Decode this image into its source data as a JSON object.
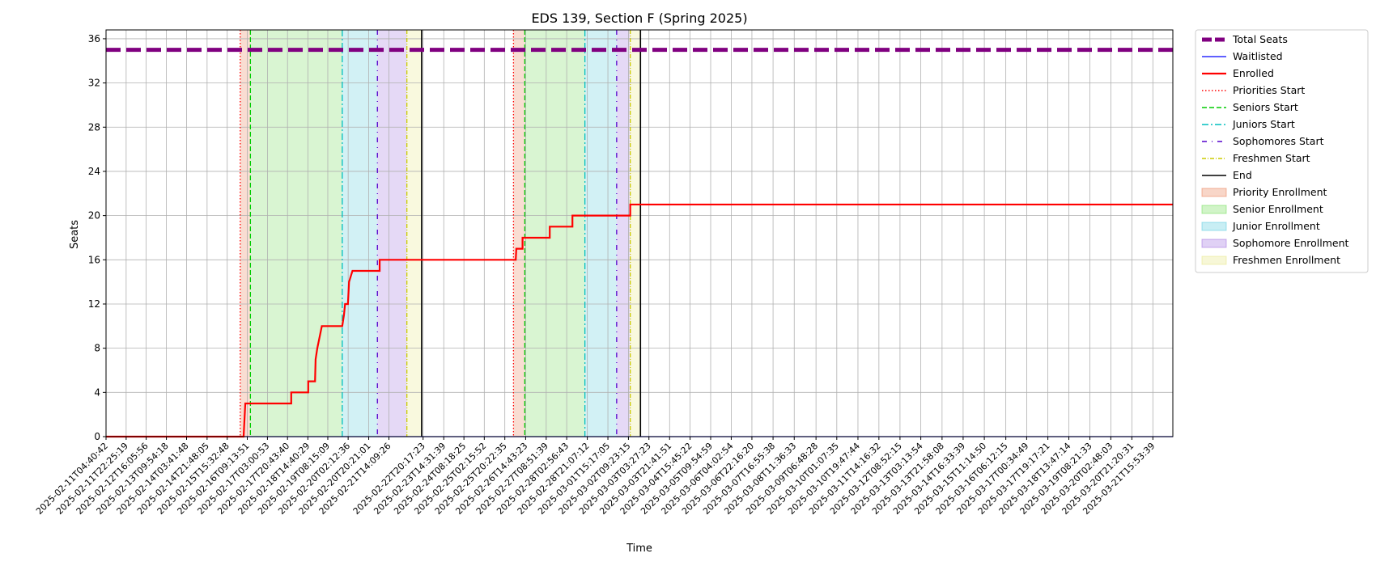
{
  "chart_data": {
    "type": "line",
    "title": "EDS 139, Section F (Spring 2025)",
    "xlabel": "Time",
    "ylabel": "Seats",
    "x_start": "2025-02-11T04:40:42",
    "x_end": "2025-03-22T09:30:00",
    "ylim": [
      0,
      36.8
    ],
    "yticks": [
      0,
      4,
      8,
      12,
      16,
      20,
      24,
      28,
      32,
      36
    ],
    "grid": true,
    "legend_position": "outside-top-right",
    "xtick_labels": [
      "2025-02-11T04:40:42",
      "2025-02-11T22:25:19",
      "2025-02-12T16:05:56",
      "2025-02-13T09:54:18",
      "2025-02-14T03:41:48",
      "2025-02-14T21:48:05",
      "2025-02-15T15:32:48",
      "2025-02-16T09:13:51",
      "2025-02-17T03:00:53",
      "2025-02-17T20:43:40",
      "2025-02-18T14:40:29",
      "2025-02-19T08:15:09",
      "2025-02-20T02:12:36",
      "2025-02-20T20:21:01",
      "2025-02-21T14:09:26",
      "2025-02-22T20:17:23",
      "2025-02-23T14:31:39",
      "2025-02-24T08:18:25",
      "2025-02-25T02:15:52",
      "2025-02-25T20:22:35",
      "2025-02-26T14:43:23",
      "2025-02-27T08:51:39",
      "2025-02-28T02:56:43",
      "2025-02-28T21:07:12",
      "2025-03-01T15:17:05",
      "2025-03-02T09:23:15",
      "2025-03-03T03:27:23",
      "2025-03-03T21:41:51",
      "2025-03-04T15:45:22",
      "2025-03-05T09:54:59",
      "2025-03-06T04:02:54",
      "2025-03-06T22:16:20",
      "2025-03-07T16:55:38",
      "2025-03-08T11:36:33",
      "2025-03-09T06:48:28",
      "2025-03-10T01:07:35",
      "2025-03-10T19:47:44",
      "2025-03-11T14:16:32",
      "2025-03-12T08:52:15",
      "2025-03-13T03:13:54",
      "2025-03-13T21:58:08",
      "2025-03-14T16:33:39",
      "2025-03-15T11:14:50",
      "2025-03-16T06:12:15",
      "2025-03-17T00:34:49",
      "2025-03-17T19:17:21",
      "2025-03-18T13:47:14",
      "2025-03-19T08:21:33",
      "2025-03-20T02:48:03",
      "2025-03-20T21:20:31",
      "2025-03-21T15:53:39"
    ],
    "series": [
      {
        "name": "Total Seats",
        "color": "#800080",
        "style": "dashed-thick",
        "points": [
          {
            "x": "2025-02-11T04:40:42",
            "y": 35
          },
          {
            "x": "2025-03-22T09:30:00",
            "y": 35
          }
        ]
      },
      {
        "name": "Waitlisted",
        "color": "#0000ff",
        "style": "solid-thin",
        "points": [
          {
            "x": "2025-02-11T04:40:42",
            "y": 0
          },
          {
            "x": "2025-03-22T09:30:00",
            "y": 0
          }
        ]
      },
      {
        "name": "Enrolled",
        "color": "#ff0000",
        "style": "solid-step",
        "points": [
          {
            "x": "2025-02-11T04:40:42",
            "y": 0
          },
          {
            "x": "2025-02-16T06:00:00",
            "y": 0
          },
          {
            "x": "2025-02-16T06:30:00",
            "y": 1
          },
          {
            "x": "2025-02-16T07:30:00",
            "y": 3
          },
          {
            "x": "2025-02-18T00:00:00",
            "y": 3
          },
          {
            "x": "2025-02-18T00:00:00",
            "y": 4
          },
          {
            "x": "2025-02-18T15:00:00",
            "y": 4
          },
          {
            "x": "2025-02-18T15:00:00",
            "y": 5
          },
          {
            "x": "2025-02-18T21:00:00",
            "y": 5
          },
          {
            "x": "2025-02-18T21:30:00",
            "y": 7
          },
          {
            "x": "2025-02-18T23:00:00",
            "y": 8
          },
          {
            "x": "2025-02-19T01:00:00",
            "y": 9
          },
          {
            "x": "2025-02-19T03:00:00",
            "y": 10
          },
          {
            "x": "2025-02-19T21:00:00",
            "y": 10
          },
          {
            "x": "2025-02-19T22:30:00",
            "y": 11
          },
          {
            "x": "2025-02-19T23:30:00",
            "y": 12
          },
          {
            "x": "2025-02-20T02:00:00",
            "y": 12
          },
          {
            "x": "2025-02-20T03:00:00",
            "y": 14
          },
          {
            "x": "2025-02-20T06:00:00",
            "y": 15
          },
          {
            "x": "2025-02-21T06:00:00",
            "y": 15
          },
          {
            "x": "2025-02-21T06:00:00",
            "y": 16
          },
          {
            "x": "2025-02-26T06:00:00",
            "y": 16
          },
          {
            "x": "2025-02-26T06:30:00",
            "y": 17
          },
          {
            "x": "2025-02-26T12:00:00",
            "y": 17
          },
          {
            "x": "2025-02-26T12:00:00",
            "y": 18
          },
          {
            "x": "2025-02-27T12:00:00",
            "y": 18
          },
          {
            "x": "2025-02-27T12:00:00",
            "y": 19
          },
          {
            "x": "2025-02-28T08:00:00",
            "y": 19
          },
          {
            "x": "2025-02-28T08:00:00",
            "y": 20
          },
          {
            "x": "2025-03-02T11:00:00",
            "y": 20
          },
          {
            "x": "2025-03-02T11:00:00",
            "y": 21
          },
          {
            "x": "2025-03-22T09:30:00",
            "y": 21
          }
        ]
      }
    ],
    "vlines": [
      {
        "name": "Priorities Start",
        "color": "#ff0000",
        "style": "dotted",
        "times": [
          "2025-02-16T03:00:00",
          "2025-02-26T04:00:00"
        ]
      },
      {
        "name": "Seniors Start",
        "color": "#00cc00",
        "style": "dashed",
        "times": [
          "2025-02-16T12:00:00",
          "2025-02-26T14:00:00"
        ]
      },
      {
        "name": "Juniors Start",
        "color": "#00bfbf",
        "style": "dashdot",
        "times": [
          "2025-02-19T21:00:00",
          "2025-02-28T19:00:00"
        ]
      },
      {
        "name": "Sophomores Start",
        "color": "#5500cc",
        "style": "loosedash",
        "times": [
          "2025-02-21T04:00:00",
          "2025-03-01T23:00:00"
        ]
      },
      {
        "name": "Freshmen Start",
        "color": "#cccc00",
        "style": "dashdot-small",
        "times": [
          "2025-02-22T06:00:00",
          "2025-03-02T11:00:00"
        ]
      },
      {
        "name": "End",
        "color": "#000000",
        "style": "solid",
        "times": [
          "2025-02-22T19:00:00",
          "2025-03-02T20:00:00"
        ]
      }
    ],
    "spans": [
      {
        "name": "Priority Enrollment",
        "color": "#e8764a",
        "ranges": [
          [
            "2025-02-16T03:00:00",
            "2025-02-16T12:00:00"
          ],
          [
            "2025-02-26T04:00:00",
            "2025-02-26T14:00:00"
          ]
        ]
      },
      {
        "name": "Senior Enrollment",
        "color": "#66d94a",
        "ranges": [
          [
            "2025-02-16T12:00:00",
            "2025-02-19T21:00:00"
          ],
          [
            "2025-02-26T14:00:00",
            "2025-02-28T19:00:00"
          ]
        ]
      },
      {
        "name": "Junior Enrollment",
        "color": "#4ac7d9",
        "ranges": [
          [
            "2025-02-19T21:00:00",
            "2025-02-21T04:00:00"
          ],
          [
            "2025-02-28T19:00:00",
            "2025-03-01T23:00:00"
          ]
        ]
      },
      {
        "name": "Sophomore Enrollment",
        "color": "#9966dd",
        "ranges": [
          [
            "2025-02-21T04:00:00",
            "2025-02-22T06:00:00"
          ],
          [
            "2025-03-01T23:00:00",
            "2025-03-02T11:00:00"
          ]
        ]
      },
      {
        "name": "Freshmen Enrollment",
        "color": "#e6e67a",
        "ranges": [
          [
            "2025-02-22T06:00:00",
            "2025-02-22T19:00:00"
          ],
          [
            "2025-03-02T11:00:00",
            "2025-03-02T20:00:00"
          ]
        ]
      }
    ],
    "legend": [
      "Total Seats",
      "Waitlisted",
      "Enrolled",
      "Priorities Start",
      "Seniors Start",
      "Juniors Start",
      "Sophomores Start",
      "Freshmen Start",
      "End",
      "Priority Enrollment",
      "Senior Enrollment",
      "Junior Enrollment",
      "Sophomore Enrollment",
      "Freshmen Enrollment"
    ]
  }
}
